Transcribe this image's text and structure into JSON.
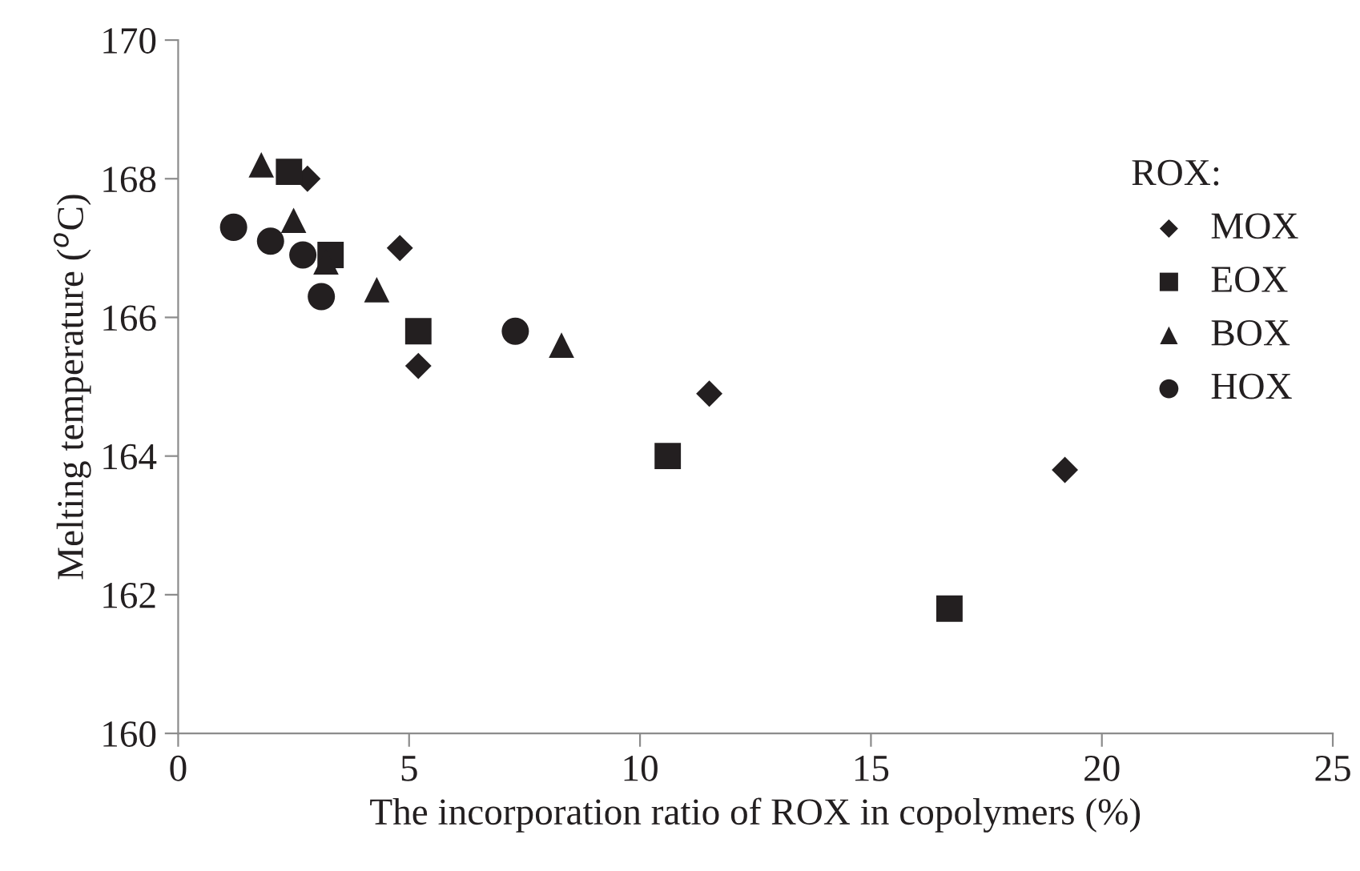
{
  "chart_data": {
    "type": "scatter",
    "xlabel": "The incorporation ratio of ROX in copolymers (%)",
    "ylabel": "Melting temperature ($^{o}$C)",
    "legend_title": "ROX:",
    "legend": "right",
    "grid": false,
    "xlim": [
      0,
      25
    ],
    "xticks": [
      0,
      5,
      10,
      15,
      20,
      25
    ],
    "ylim": [
      160,
      170
    ],
    "yticks": [
      160,
      162,
      164,
      166,
      168,
      170
    ],
    "series": [
      {
        "name": "MOX",
        "color": "#231f20",
        "marker": "diamond",
        "x": [
          2.8,
          4.8,
          5.2,
          11.5,
          19.2
        ],
        "values": [
          168.0,
          167.0,
          165.3,
          164.9,
          163.8
        ]
      },
      {
        "name": "EOX",
        "color": "#231f20",
        "marker": "square",
        "x": [
          2.4,
          3.3,
          5.2,
          10.6,
          16.7
        ],
        "values": [
          168.1,
          166.9,
          165.8,
          164.0,
          161.8
        ]
      },
      {
        "name": "BOX",
        "color": "#231f20",
        "marker": "triangle",
        "x": [
          1.8,
          2.5,
          3.2,
          4.3,
          8.3
        ],
        "values": [
          168.2,
          167.4,
          166.8,
          166.4,
          165.6
        ]
      },
      {
        "name": "HOX",
        "color": "#231f20",
        "marker": "circle",
        "x": [
          1.2,
          2.0,
          2.7,
          3.1,
          7.3
        ],
        "values": [
          167.3,
          167.1,
          166.9,
          166.3,
          165.8
        ]
      }
    ]
  }
}
